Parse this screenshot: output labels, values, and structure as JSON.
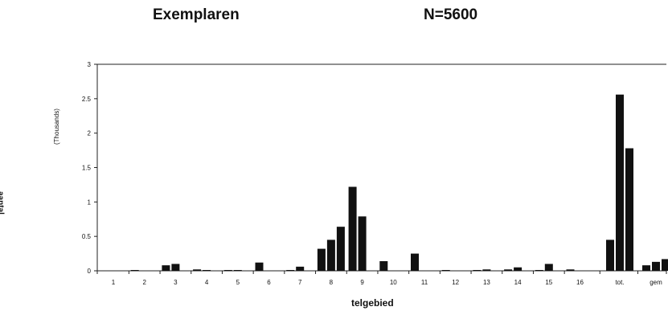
{
  "header": {
    "title": "Exemplaren",
    "subtitle": "N=5600"
  },
  "chart_data": {
    "type": "bar",
    "title": "Exemplaren",
    "subtitle": "N=5600",
    "xlabel": "telgebied",
    "ylabel": "aantal",
    "yunit": "(Thousands)",
    "ylim": [
      0,
      3
    ],
    "yticks": [
      0,
      0.5,
      1,
      1.5,
      2,
      2.5,
      3
    ],
    "ytick_labels": [
      "0",
      "0.5",
      "1",
      "1.5",
      "2",
      "2.5",
      "3"
    ],
    "grid": false,
    "legend": "none",
    "categories": [
      "1",
      "2",
      "3",
      "4",
      "5",
      "6",
      "7",
      "8",
      "9",
      "10",
      "11",
      "12",
      "13",
      "14",
      "15",
      "16",
      "tot.",
      "gem"
    ],
    "series": [
      {
        "values": [
          0,
          0.01,
          0.08,
          0.02,
          0.005,
          0.12,
          0.005,
          0.32,
          1.22,
          0.14,
          0.25,
          0.01,
          0.005,
          0.02,
          0.01,
          0.02,
          0.45,
          0.08
        ]
      },
      {
        "values": [
          0,
          0,
          0.1,
          0.005,
          0.005,
          0,
          0.06,
          0.45,
          0.79,
          0,
          0,
          0,
          0.02,
          0.05,
          0.1,
          0,
          2.56,
          0.13
        ]
      },
      {
        "values": [
          0,
          0,
          0,
          0,
          0,
          0,
          0,
          0.64,
          0,
          0,
          0,
          0,
          0,
          0,
          0,
          0,
          1.78,
          0.17
        ]
      }
    ],
    "colors": {
      "bar": "#111111",
      "axis": "#222222"
    }
  }
}
